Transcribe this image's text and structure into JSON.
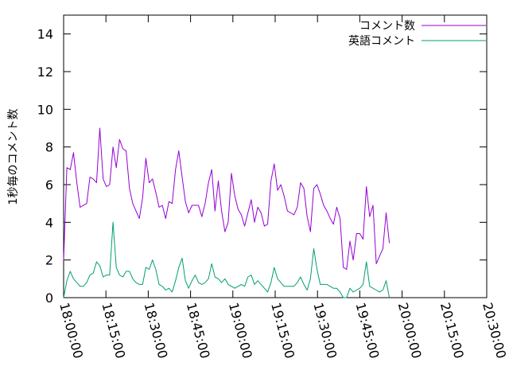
{
  "chart_data": {
    "type": "line",
    "ylabel": "1秒毎のコメント数",
    "xlabel": "",
    "ylim": [
      0,
      15
    ],
    "xlim": [
      "18:00:00",
      "20:30:00"
    ],
    "y_ticks": [
      "0",
      "2",
      "4",
      "6",
      "8",
      "10",
      "12",
      "14"
    ],
    "x_ticks": [
      "18:00:00",
      "18:15:00",
      "18:30:00",
      "18:45:00",
      "19:00:00",
      "19:15:00",
      "19:30:00",
      "19:45:00",
      "20:00:00",
      "20:15:00",
      "20:30:00"
    ],
    "legend_position": "top-right",
    "grid": false,
    "series": [
      {
        "name": "コメント数",
        "color": "#9400d3",
        "points": [
          [
            "18:00:00",
            2.0
          ],
          [
            "18:01:10",
            6.9
          ],
          [
            "18:02:20",
            6.8
          ],
          [
            "18:03:30",
            7.7
          ],
          [
            "18:04:40",
            6.1
          ],
          [
            "18:05:50",
            4.8
          ],
          [
            "18:07:00",
            4.9
          ],
          [
            "18:08:10",
            5.0
          ],
          [
            "18:09:20",
            6.4
          ],
          [
            "18:10:30",
            6.3
          ],
          [
            "18:11:40",
            6.1
          ],
          [
            "18:12:50",
            9.0
          ],
          [
            "18:14:00",
            6.3
          ],
          [
            "18:15:10",
            5.9
          ],
          [
            "18:16:20",
            6.0
          ],
          [
            "18:17:30",
            8.0
          ],
          [
            "18:18:40",
            6.9
          ],
          [
            "18:19:50",
            8.4
          ],
          [
            "18:21:00",
            7.9
          ],
          [
            "18:22:10",
            7.8
          ],
          [
            "18:23:20",
            5.8
          ],
          [
            "18:24:30",
            5.0
          ],
          [
            "18:25:40",
            4.6
          ],
          [
            "18:26:50",
            4.2
          ],
          [
            "18:28:00",
            5.3
          ],
          [
            "18:29:10",
            7.4
          ],
          [
            "18:30:20",
            6.1
          ],
          [
            "18:31:30",
            6.3
          ],
          [
            "18:32:40",
            5.6
          ],
          [
            "18:33:50",
            4.8
          ],
          [
            "18:35:00",
            4.9
          ],
          [
            "18:36:10",
            4.2
          ],
          [
            "18:37:20",
            5.1
          ],
          [
            "18:38:30",
            5.0
          ],
          [
            "18:39:40",
            6.8
          ],
          [
            "18:40:50",
            7.8
          ],
          [
            "18:42:00",
            6.4
          ],
          [
            "18:43:10",
            5.1
          ],
          [
            "18:44:20",
            4.5
          ],
          [
            "18:45:30",
            4.9
          ],
          [
            "18:46:40",
            4.9
          ],
          [
            "18:47:50",
            4.9
          ],
          [
            "18:49:00",
            4.3
          ],
          [
            "18:50:10",
            5.0
          ],
          [
            "18:51:20",
            6.1
          ],
          [
            "18:52:30",
            6.8
          ],
          [
            "18:53:40",
            4.6
          ],
          [
            "18:54:50",
            6.2
          ],
          [
            "18:56:00",
            4.6
          ],
          [
            "18:57:10",
            3.5
          ],
          [
            "18:58:20",
            4.0
          ],
          [
            "18:59:30",
            6.6
          ],
          [
            "19:00:40",
            5.4
          ],
          [
            "19:01:50",
            4.7
          ],
          [
            "19:03:00",
            4.4
          ],
          [
            "19:04:10",
            3.8
          ],
          [
            "19:05:20",
            4.5
          ],
          [
            "19:06:30",
            5.2
          ],
          [
            "19:07:40",
            4.0
          ],
          [
            "19:08:50",
            4.8
          ],
          [
            "19:10:00",
            4.5
          ],
          [
            "19:11:10",
            3.8
          ],
          [
            "19:12:20",
            3.9
          ],
          [
            "19:13:30",
            6.2
          ],
          [
            "19:14:40",
            7.1
          ],
          [
            "19:15:50",
            5.7
          ],
          [
            "19:17:00",
            6.0
          ],
          [
            "19:18:10",
            5.4
          ],
          [
            "19:19:20",
            4.6
          ],
          [
            "19:20:30",
            4.5
          ],
          [
            "19:21:40",
            4.4
          ],
          [
            "19:22:50",
            4.8
          ],
          [
            "19:24:00",
            6.1
          ],
          [
            "19:25:10",
            5.8
          ],
          [
            "19:26:20",
            4.3
          ],
          [
            "19:27:30",
            3.5
          ],
          [
            "19:28:40",
            5.8
          ],
          [
            "19:29:50",
            6.0
          ],
          [
            "19:31:00",
            5.5
          ],
          [
            "19:32:10",
            4.9
          ],
          [
            "19:33:20",
            4.6
          ],
          [
            "19:34:30",
            4.2
          ],
          [
            "19:35:40",
            3.9
          ],
          [
            "19:36:50",
            4.8
          ],
          [
            "19:38:00",
            4.2
          ],
          [
            "19:39:10",
            1.6
          ],
          [
            "19:40:20",
            1.5
          ],
          [
            "19:41:30",
            3.0
          ],
          [
            "19:42:40",
            2.0
          ],
          [
            "19:43:50",
            3.4
          ],
          [
            "19:45:00",
            3.4
          ],
          [
            "19:46:10",
            3.1
          ],
          [
            "19:47:20",
            5.9
          ],
          [
            "19:48:30",
            4.3
          ],
          [
            "19:49:40",
            4.9
          ],
          [
            "19:50:50",
            1.8
          ],
          [
            "19:52:00",
            2.2
          ],
          [
            "19:53:10",
            2.6
          ],
          [
            "19:54:20",
            4.5
          ],
          [
            "19:55:30",
            2.9
          ]
        ]
      },
      {
        "name": "英語コメント",
        "color": "#009e73",
        "points": [
          [
            "18:00:00",
            0.0
          ],
          [
            "18:01:10",
            0.9
          ],
          [
            "18:02:20",
            1.4
          ],
          [
            "18:03:30",
            1.0
          ],
          [
            "18:04:40",
            0.8
          ],
          [
            "18:05:50",
            0.6
          ],
          [
            "18:07:00",
            0.6
          ],
          [
            "18:08:10",
            0.8
          ],
          [
            "18:09:20",
            1.2
          ],
          [
            "18:10:30",
            1.3
          ],
          [
            "18:11:40",
            1.9
          ],
          [
            "18:12:50",
            1.7
          ],
          [
            "18:14:00",
            1.1
          ],
          [
            "18:15:10",
            1.2
          ],
          [
            "18:16:20",
            1.2
          ],
          [
            "18:17:30",
            4.0
          ],
          [
            "18:18:40",
            1.6
          ],
          [
            "18:19:50",
            1.2
          ],
          [
            "18:21:00",
            1.1
          ],
          [
            "18:22:10",
            1.4
          ],
          [
            "18:23:20",
            1.4
          ],
          [
            "18:24:30",
            1.0
          ],
          [
            "18:25:40",
            0.8
          ],
          [
            "18:26:50",
            0.7
          ],
          [
            "18:28:00",
            0.7
          ],
          [
            "18:29:10",
            1.6
          ],
          [
            "18:30:20",
            1.5
          ],
          [
            "18:31:30",
            2.0
          ],
          [
            "18:32:40",
            1.5
          ],
          [
            "18:33:50",
            0.7
          ],
          [
            "18:35:00",
            0.6
          ],
          [
            "18:36:10",
            0.4
          ],
          [
            "18:37:20",
            0.5
          ],
          [
            "18:38:30",
            0.3
          ],
          [
            "18:39:40",
            0.9
          ],
          [
            "18:40:50",
            1.6
          ],
          [
            "18:42:00",
            2.1
          ],
          [
            "18:43:10",
            0.9
          ],
          [
            "18:44:20",
            0.5
          ],
          [
            "18:45:30",
            0.9
          ],
          [
            "18:46:40",
            1.2
          ],
          [
            "18:47:50",
            0.8
          ],
          [
            "18:49:00",
            0.7
          ],
          [
            "18:50:10",
            0.8
          ],
          [
            "18:51:20",
            1.0
          ],
          [
            "18:52:30",
            1.8
          ],
          [
            "18:53:40",
            1.1
          ],
          [
            "18:54:50",
            1.0
          ],
          [
            "18:56:00",
            0.8
          ],
          [
            "18:57:10",
            1.0
          ],
          [
            "18:58:20",
            0.7
          ],
          [
            "18:59:30",
            0.6
          ],
          [
            "19:00:40",
            0.5
          ],
          [
            "19:01:50",
            0.6
          ],
          [
            "19:03:00",
            0.7
          ],
          [
            "19:04:10",
            0.6
          ],
          [
            "19:05:20",
            1.1
          ],
          [
            "19:06:30",
            1.2
          ],
          [
            "19:07:40",
            0.7
          ],
          [
            "19:08:50",
            0.9
          ],
          [
            "19:10:00",
            0.7
          ],
          [
            "19:11:10",
            0.5
          ],
          [
            "19:12:20",
            0.3
          ],
          [
            "19:13:30",
            0.8
          ],
          [
            "19:14:40",
            1.6
          ],
          [
            "19:15:50",
            1.0
          ],
          [
            "19:17:00",
            0.8
          ],
          [
            "19:18:10",
            0.6
          ],
          [
            "19:19:20",
            0.6
          ],
          [
            "19:20:30",
            0.6
          ],
          [
            "19:21:40",
            0.6
          ],
          [
            "19:22:50",
            0.8
          ],
          [
            "19:24:00",
            1.1
          ],
          [
            "19:25:10",
            0.7
          ],
          [
            "19:26:20",
            0.4
          ],
          [
            "19:27:30",
            1.0
          ],
          [
            "19:28:40",
            2.6
          ],
          [
            "19:29:50",
            1.5
          ],
          [
            "19:31:00",
            0.7
          ],
          [
            "19:32:10",
            0.7
          ],
          [
            "19:33:20",
            0.7
          ],
          [
            "19:34:30",
            0.6
          ],
          [
            "19:35:40",
            0.5
          ],
          [
            "19:36:50",
            0.5
          ],
          [
            "19:38:00",
            0.3
          ],
          [
            "19:39:10",
            0.0
          ],
          [
            "19:40:20",
            0.0
          ],
          [
            "19:41:30",
            0.5
          ],
          [
            "19:42:40",
            0.3
          ],
          [
            "19:43:50",
            0.4
          ],
          [
            "19:45:00",
            0.5
          ],
          [
            "19:46:10",
            0.7
          ],
          [
            "19:47:20",
            1.9
          ],
          [
            "19:48:30",
            0.6
          ],
          [
            "19:49:40",
            0.5
          ],
          [
            "19:50:50",
            0.4
          ],
          [
            "19:52:00",
            0.3
          ],
          [
            "19:53:10",
            0.4
          ],
          [
            "19:54:20",
            0.9
          ],
          [
            "19:55:30",
            0.0
          ]
        ]
      }
    ]
  }
}
